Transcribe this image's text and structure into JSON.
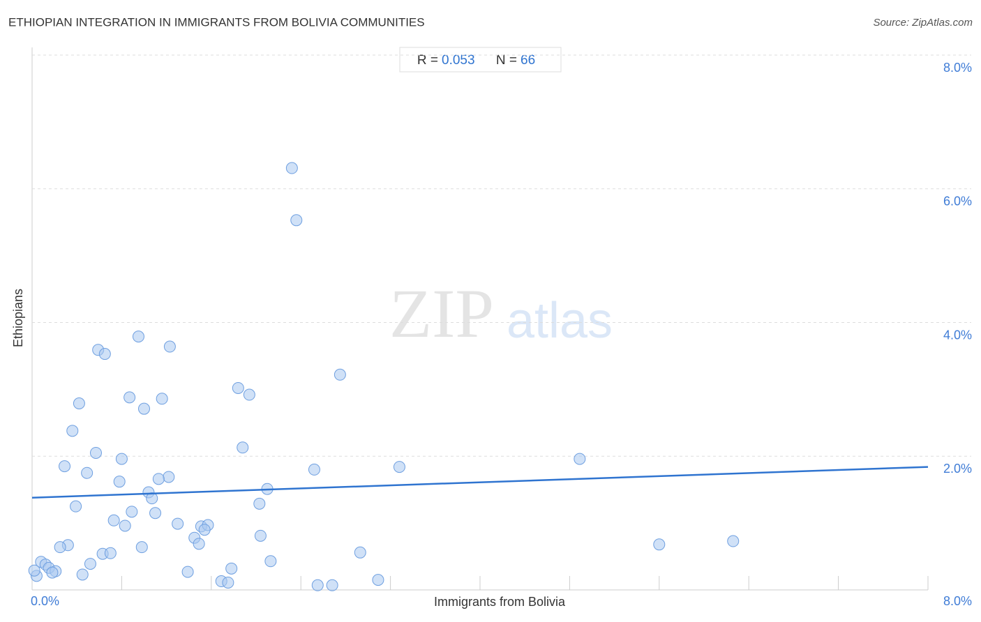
{
  "chart_data": {
    "type": "scatter",
    "title": "ETHIOPIAN INTEGRATION IN IMMIGRANTS FROM BOLIVIA COMMUNITIES",
    "source": "Source: ZipAtlas.com",
    "watermark": [
      "ZIP",
      "atlas"
    ],
    "xlabel": "Immigrants from Bolivia",
    "ylabel": "Ethiopians",
    "stats": {
      "r_label": "R =",
      "r": 0.053,
      "n_label": "N =",
      "n": 66
    },
    "xlim": [
      0,
      8
    ],
    "ylim": [
      0,
      8
    ],
    "xticks": [
      {
        "value": 0,
        "label": "0.0%"
      },
      {
        "value": 8,
        "label": "8.0%"
      }
    ],
    "xtick_marks": [
      0.8,
      1.6,
      2.4,
      3.2,
      4.0,
      4.8,
      5.6,
      6.4,
      7.2,
      8.0
    ],
    "yticks": [
      {
        "value": 2,
        "label": "2.0%"
      },
      {
        "value": 4,
        "label": "4.0%"
      },
      {
        "value": 6,
        "label": "6.0%"
      },
      {
        "value": 8,
        "label": "8.0%"
      }
    ],
    "grid": true,
    "color": "#a9c8f0",
    "series": [
      {
        "name": "Ethiopians",
        "color": "#a9c8f0",
        "x": [
          2.32,
          2.36,
          0.95,
          1.23,
          0.59,
          0.65,
          2.75,
          1.84,
          1.94,
          0.87,
          1.16,
          0.42,
          1.0,
          0.36,
          1.88,
          0.57,
          0.8,
          4.89,
          0.29,
          3.28,
          2.52,
          0.49,
          1.22,
          1.13,
          0.78,
          2.1,
          1.04,
          1.07,
          2.03,
          0.39,
          1.1,
          0.89,
          0.73,
          0.83,
          1.3,
          1.51,
          1.57,
          1.54,
          2.04,
          1.45,
          1.49,
          5.6,
          6.26,
          0.32,
          0.25,
          0.98,
          2.93,
          0.63,
          0.7,
          2.13,
          0.52,
          0.08,
          0.12,
          0.15,
          1.78,
          0.21,
          0.18,
          1.39,
          0.45,
          0.04,
          0.02,
          1.69,
          1.75,
          3.09,
          2.55,
          2.68
        ],
        "values": [
          6.31,
          5.53,
          3.79,
          3.64,
          3.59,
          3.53,
          3.22,
          3.02,
          2.92,
          2.88,
          2.86,
          2.79,
          2.71,
          2.38,
          2.13,
          2.05,
          1.96,
          1.96,
          1.85,
          1.84,
          1.8,
          1.75,
          1.69,
          1.66,
          1.62,
          1.51,
          1.46,
          1.37,
          1.29,
          1.25,
          1.15,
          1.17,
          1.04,
          0.96,
          0.99,
          0.95,
          0.97,
          0.9,
          0.81,
          0.78,
          0.69,
          0.68,
          0.73,
          0.67,
          0.64,
          0.64,
          0.56,
          0.54,
          0.55,
          0.43,
          0.39,
          0.42,
          0.38,
          0.33,
          0.32,
          0.28,
          0.26,
          0.27,
          0.23,
          0.21,
          0.29,
          0.13,
          0.11,
          0.15,
          0.07,
          0.07
        ]
      }
    ],
    "trendline": {
      "color": "#2f74d0",
      "x": [
        0,
        8
      ],
      "values": [
        1.38,
        1.84
      ]
    }
  }
}
